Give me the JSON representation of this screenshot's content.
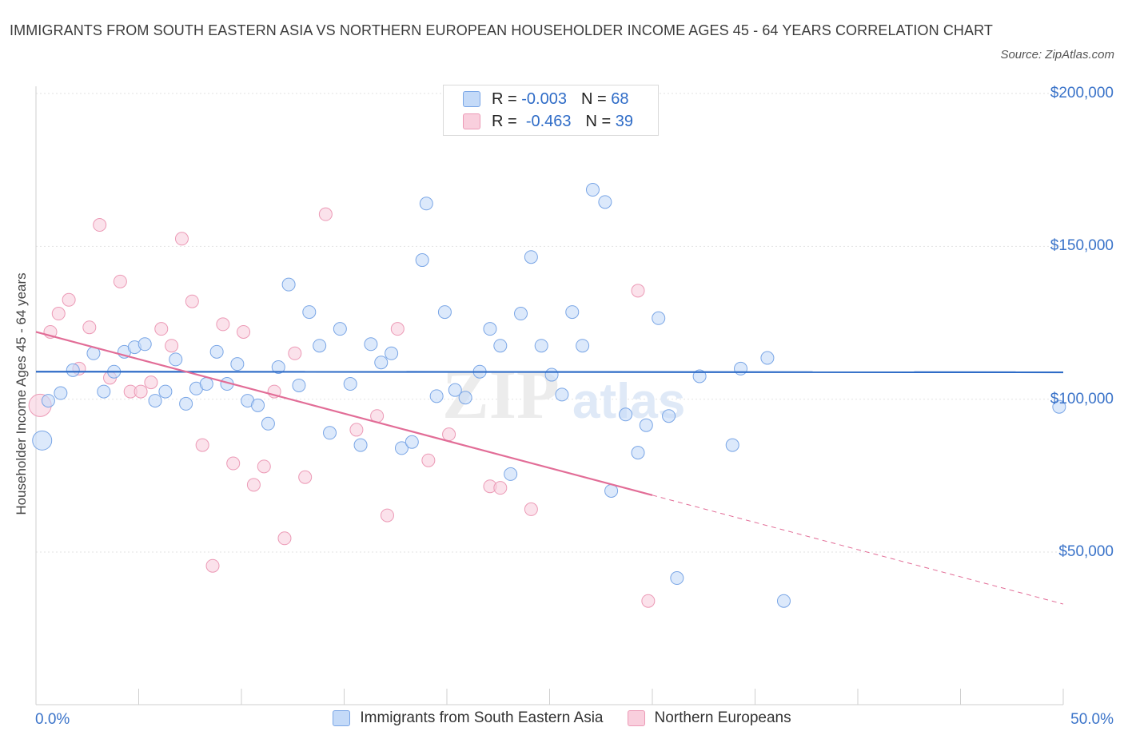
{
  "title": "IMMIGRANTS FROM SOUTH EASTERN ASIA VS NORTHERN EUROPEAN HOUSEHOLDER INCOME AGES 45 - 64 YEARS CORRELATION CHART",
  "source": "Source: ZipAtlas.com",
  "watermark": {
    "zip": "ZIP",
    "atlas": "atlas"
  },
  "colors": {
    "blue": "#7aa6e6",
    "blue_fill": "#c4daf8",
    "blue_line": "#2f6cc7",
    "pink": "#ec9ab6",
    "pink_fill": "#f9cfdd",
    "pink_line": "#e26d97",
    "axis_text": "#3a73c9"
  },
  "legend": {
    "r_label": "R =",
    "n_label": "N =",
    "series": [
      {
        "r": "-0.003",
        "n": "68"
      },
      {
        "r": "-0.463",
        "n": "39"
      }
    ]
  },
  "bottom_legend": [
    "Immigrants from South Eastern Asia",
    "Northern Europeans"
  ],
  "chart_data": {
    "type": "scatter",
    "title": "IMMIGRANTS FROM SOUTH EASTERN ASIA VS NORTHERN EUROPEAN HOUSEHOLDER INCOME AGES 45 - 64 YEARS CORRELATION CHART",
    "xlabel": "",
    "ylabel": "Householder Income Ages 45 - 64 years",
    "xlim": [
      0,
      50
    ],
    "ylim": [
      20000,
      215000
    ],
    "x_tick_labels": [
      "0.0%",
      "50.0%"
    ],
    "y_ticks": [
      50000,
      100000,
      150000,
      200000
    ],
    "y_tick_labels": [
      "$50,000",
      "$100,000",
      "$150,000",
      "$200,000"
    ],
    "grid": true,
    "legend_position": "top-center",
    "series": [
      {
        "name": "Immigrants from South Eastern Asia",
        "r": -0.003,
        "n": 68,
        "trend": {
          "x": [
            0,
            50
          ],
          "y": [
            109000,
            108800
          ],
          "dashed_from": null
        },
        "points": [
          [
            0.3,
            86500,
            12
          ],
          [
            0.6,
            99500,
            8
          ],
          [
            1.2,
            102000,
            8
          ],
          [
            1.8,
            109500,
            8
          ],
          [
            2.8,
            115000,
            8
          ],
          [
            3.3,
            102500,
            8
          ],
          [
            3.8,
            109000,
            8
          ],
          [
            4.3,
            115500,
            8
          ],
          [
            4.8,
            117000,
            8
          ],
          [
            5.3,
            118000,
            8
          ],
          [
            5.8,
            99500,
            8
          ],
          [
            6.3,
            102500,
            8
          ],
          [
            6.8,
            113000,
            8
          ],
          [
            7.3,
            98500,
            8
          ],
          [
            7.8,
            103500,
            8
          ],
          [
            8.3,
            105000,
            8
          ],
          [
            8.8,
            115500,
            8
          ],
          [
            9.3,
            105000,
            8
          ],
          [
            9.8,
            111500,
            8
          ],
          [
            10.3,
            99500,
            8
          ],
          [
            10.8,
            98000,
            8
          ],
          [
            11.3,
            92000,
            8
          ],
          [
            11.8,
            110500,
            8
          ],
          [
            12.3,
            137500,
            8
          ],
          [
            12.8,
            104500,
            8
          ],
          [
            13.3,
            128500,
            8
          ],
          [
            13.8,
            117500,
            8
          ],
          [
            14.3,
            89000,
            8
          ],
          [
            14.8,
            123000,
            8
          ],
          [
            15.3,
            105000,
            8
          ],
          [
            15.8,
            85000,
            8
          ],
          [
            16.3,
            118000,
            8
          ],
          [
            16.8,
            112000,
            8
          ],
          [
            17.3,
            115000,
            8
          ],
          [
            17.8,
            84000,
            8
          ],
          [
            18.3,
            86000,
            8
          ],
          [
            18.8,
            145500,
            8
          ],
          [
            19.0,
            164000,
            8
          ],
          [
            19.5,
            101000,
            8
          ],
          [
            19.9,
            128500,
            8
          ],
          [
            20.4,
            103000,
            8
          ],
          [
            20.9,
            100500,
            8
          ],
          [
            21.6,
            109000,
            8
          ],
          [
            22.1,
            123000,
            8
          ],
          [
            22.6,
            117500,
            8
          ],
          [
            23.1,
            75500,
            8
          ],
          [
            23.6,
            128000,
            8
          ],
          [
            24.1,
            146500,
            8
          ],
          [
            24.6,
            117500,
            8
          ],
          [
            25.1,
            108000,
            8
          ],
          [
            25.6,
            101500,
            8
          ],
          [
            26.1,
            128500,
            8
          ],
          [
            26.6,
            117500,
            8
          ],
          [
            27.1,
            168500,
            8
          ],
          [
            27.7,
            164500,
            8
          ],
          [
            28.0,
            70000,
            8
          ],
          [
            28.7,
            95000,
            8
          ],
          [
            29.3,
            82500,
            8
          ],
          [
            29.7,
            91500,
            8
          ],
          [
            30.3,
            126500,
            8
          ],
          [
            30.8,
            94500,
            8
          ],
          [
            31.2,
            41500,
            8
          ],
          [
            32.3,
            107500,
            8
          ],
          [
            33.9,
            85000,
            8
          ],
          [
            34.3,
            110000,
            8
          ],
          [
            35.6,
            113500,
            8
          ],
          [
            36.4,
            34000,
            8
          ],
          [
            49.8,
            97500,
            8
          ]
        ]
      },
      {
        "name": "Northern Europeans",
        "r": -0.463,
        "n": 39,
        "trend": {
          "x": [
            0,
            50
          ],
          "y": [
            122000,
            33000
          ],
          "dashed_from": 30
        },
        "points": [
          [
            0.2,
            98000,
            14
          ],
          [
            0.7,
            122000,
            8
          ],
          [
            1.1,
            128000,
            8
          ],
          [
            1.6,
            132500,
            8
          ],
          [
            2.1,
            110000,
            8
          ],
          [
            2.6,
            123500,
            8
          ],
          [
            3.1,
            157000,
            8
          ],
          [
            3.6,
            107000,
            8
          ],
          [
            4.1,
            138500,
            8
          ],
          [
            4.6,
            102500,
            8
          ],
          [
            5.1,
            102500,
            8
          ],
          [
            5.6,
            105500,
            8
          ],
          [
            6.1,
            123000,
            8
          ],
          [
            6.6,
            117500,
            8
          ],
          [
            7.1,
            152500,
            8
          ],
          [
            7.6,
            132000,
            8
          ],
          [
            8.1,
            85000,
            8
          ],
          [
            8.6,
            45500,
            8
          ],
          [
            9.1,
            124500,
            8
          ],
          [
            9.6,
            79000,
            8
          ],
          [
            10.1,
            122000,
            8
          ],
          [
            10.6,
            72000,
            8
          ],
          [
            11.1,
            78000,
            8
          ],
          [
            11.6,
            102500,
            8
          ],
          [
            12.1,
            54500,
            8
          ],
          [
            12.6,
            115000,
            8
          ],
          [
            13.1,
            74500,
            8
          ],
          [
            14.1,
            160500,
            8
          ],
          [
            15.6,
            90000,
            8
          ],
          [
            16.6,
            94500,
            8
          ],
          [
            17.1,
            62000,
            8
          ],
          [
            17.6,
            123000,
            8
          ],
          [
            19.1,
            80000,
            8
          ],
          [
            20.1,
            88500,
            8
          ],
          [
            22.1,
            71500,
            8
          ],
          [
            22.6,
            71000,
            8
          ],
          [
            24.1,
            64000,
            8
          ],
          [
            29.3,
            135500,
            8
          ],
          [
            29.8,
            34000,
            8
          ]
        ]
      }
    ]
  }
}
